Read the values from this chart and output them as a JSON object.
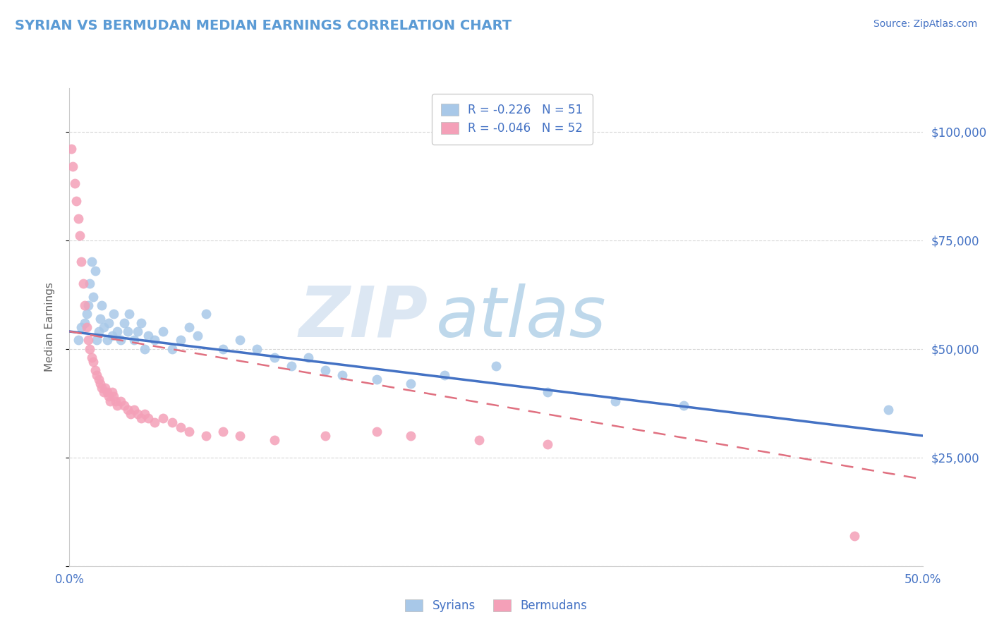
{
  "title": "SYRIAN VS BERMUDAN MEDIAN EARNINGS CORRELATION CHART",
  "source_text": "Source: ZipAtlas.com",
  "ylabel": "Median Earnings",
  "watermark_zip": "ZIP",
  "watermark_atlas": "atlas",
  "xlim": [
    0.0,
    0.5
  ],
  "ylim": [
    0,
    110000
  ],
  "yticks": [
    0,
    25000,
    50000,
    75000,
    100000
  ],
  "ytick_labels": [
    "",
    "$25,000",
    "$50,000",
    "$75,000",
    "$100,000"
  ],
  "xticks": [
    0.0,
    0.1,
    0.2,
    0.3,
    0.4,
    0.5
  ],
  "xtick_labels": [
    "0.0%",
    "",
    "",
    "",
    "",
    "50.0%"
  ],
  "legend_r1": "R = -0.226",
  "legend_n1": "N = 51",
  "legend_r2": "R = -0.046",
  "legend_n2": "N = 52",
  "legend_label1": "Syrians",
  "legend_label2": "Bermudans",
  "syrian_color": "#a8c8e8",
  "bermudan_color": "#f4a0b8",
  "line_color_syrian": "#4472c4",
  "line_color_bermudan": "#e07080",
  "title_color": "#5b9bd5",
  "axis_label_color": "#666666",
  "tick_label_color": "#4472c4",
  "grid_color": "#cccccc",
  "background_color": "#ffffff",
  "syrian_x": [
    0.005,
    0.007,
    0.009,
    0.01,
    0.011,
    0.012,
    0.013,
    0.014,
    0.015,
    0.016,
    0.017,
    0.018,
    0.019,
    0.02,
    0.022,
    0.023,
    0.025,
    0.026,
    0.028,
    0.03,
    0.032,
    0.034,
    0.035,
    0.038,
    0.04,
    0.042,
    0.044,
    0.046,
    0.05,
    0.055,
    0.06,
    0.065,
    0.07,
    0.075,
    0.08,
    0.09,
    0.1,
    0.11,
    0.12,
    0.13,
    0.14,
    0.15,
    0.16,
    0.18,
    0.2,
    0.22,
    0.25,
    0.28,
    0.32,
    0.36,
    0.48
  ],
  "syrian_y": [
    52000,
    55000,
    56000,
    58000,
    60000,
    65000,
    70000,
    62000,
    68000,
    52000,
    54000,
    57000,
    60000,
    55000,
    52000,
    56000,
    53000,
    58000,
    54000,
    52000,
    56000,
    54000,
    58000,
    52000,
    54000,
    56000,
    50000,
    53000,
    52000,
    54000,
    50000,
    52000,
    55000,
    53000,
    58000,
    50000,
    52000,
    50000,
    48000,
    46000,
    48000,
    45000,
    44000,
    43000,
    42000,
    44000,
    46000,
    40000,
    38000,
    37000,
    36000
  ],
  "bermudan_x": [
    0.001,
    0.002,
    0.003,
    0.004,
    0.005,
    0.006,
    0.007,
    0.008,
    0.009,
    0.01,
    0.011,
    0.012,
    0.013,
    0.014,
    0.015,
    0.016,
    0.017,
    0.018,
    0.019,
    0.02,
    0.021,
    0.022,
    0.023,
    0.024,
    0.025,
    0.026,
    0.027,
    0.028,
    0.03,
    0.032,
    0.034,
    0.036,
    0.038,
    0.04,
    0.042,
    0.044,
    0.046,
    0.05,
    0.055,
    0.06,
    0.065,
    0.07,
    0.08,
    0.09,
    0.1,
    0.12,
    0.15,
    0.18,
    0.2,
    0.24,
    0.28,
    0.46
  ],
  "bermudan_y": [
    96000,
    92000,
    88000,
    84000,
    80000,
    76000,
    70000,
    65000,
    60000,
    55000,
    52000,
    50000,
    48000,
    47000,
    45000,
    44000,
    43000,
    42000,
    41000,
    40000,
    41000,
    40000,
    39000,
    38000,
    40000,
    39000,
    38000,
    37000,
    38000,
    37000,
    36000,
    35000,
    36000,
    35000,
    34000,
    35000,
    34000,
    33000,
    34000,
    33000,
    32000,
    31000,
    30000,
    31000,
    30000,
    29000,
    30000,
    31000,
    30000,
    29000,
    28000,
    7000
  ],
  "syrian_trend_x": [
    0.0,
    0.5
  ],
  "syrian_trend_y": [
    54000,
    30000
  ],
  "bermudan_trend_x": [
    0.0,
    0.18
  ],
  "bermudan_trend_y": [
    54000,
    44000
  ]
}
